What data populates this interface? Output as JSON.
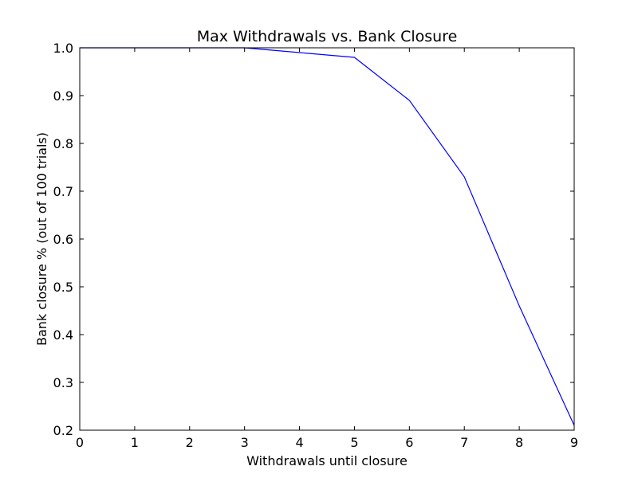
{
  "chart_data": {
    "type": "line",
    "title": "Max Withdrawals vs. Bank Closure",
    "xlabel": "Withdrawals until closure",
    "ylabel": "Bank closure % (out of 100 trials)",
    "xlim": [
      0,
      9
    ],
    "ylim": [
      0.2,
      1.0
    ],
    "xticks": [
      "0",
      "1",
      "2",
      "3",
      "4",
      "5",
      "6",
      "7",
      "8",
      "9"
    ],
    "yticks": [
      "0.2",
      "0.3",
      "0.4",
      "0.5",
      "0.6",
      "0.7",
      "0.8",
      "0.9",
      "1.0"
    ],
    "grid": false,
    "series": [
      {
        "x": [
          0,
          1,
          2,
          3,
          4,
          5,
          6,
          7,
          8,
          9
        ],
        "y": [
          1.0,
          1.0,
          1.0,
          1.0,
          0.99,
          0.98,
          0.89,
          0.73,
          0.46,
          0.21
        ],
        "color": "#0000ff"
      }
    ]
  }
}
